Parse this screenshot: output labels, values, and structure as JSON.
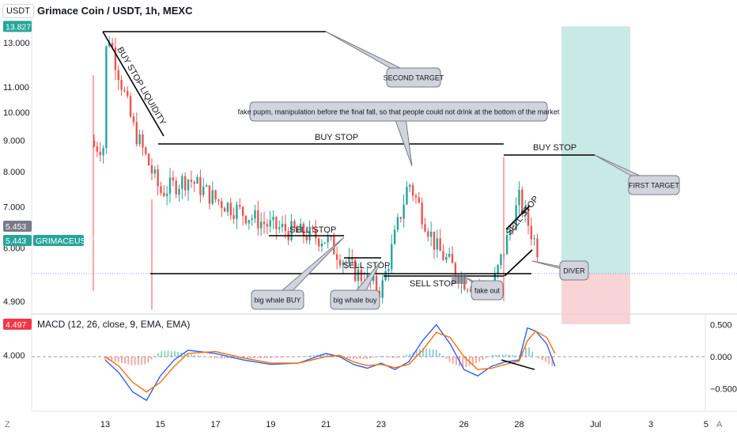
{
  "header": {
    "symbol_button": "USDT",
    "title": "Grimace Coin / USDT, 1h, MEXC"
  },
  "macd": {
    "label": "MACD (12, 26, close, 9, EMA, EMA)"
  },
  "corners": {
    "left": "Z",
    "right": "A"
  },
  "colors": {
    "up": "#26a69a",
    "down": "#ef5350",
    "price_badge": "#26a69a",
    "stop_badge": "#f23645",
    "target_badge": "#26a69a",
    "profit_zone": "#b2dfdb",
    "loss_zone": "#f8c9cd",
    "macd_line": "#2962ff",
    "signal_line": "#ff6d00",
    "callout_fill": "#d1d4dc"
  },
  "chart_data": [
    {
      "type": "candlestick",
      "title": "Grimace Coin / USDT, 1h, MEXC",
      "scale": "log",
      "ylim": [
        3.9,
        14.2
      ],
      "y_ticks": [
        13.0,
        11.0,
        10.0,
        9.0,
        8.0,
        7.0,
        6.0,
        4.9,
        4.0
      ],
      "y_tick_labels": [
        "13.000",
        "11.000",
        "10.000",
        "9.000",
        "8.000",
        "7.000",
        "6.000",
        "4.900",
        "4.000"
      ],
      "x_ticks": [
        "13",
        "15",
        "17",
        "19",
        "21",
        "23",
        "26",
        "28",
        "Jul",
        "3",
        "5"
      ],
      "price_path_approx": [
        {
          "x": "13",
          "close": 9.0
        },
        {
          "x": "13",
          "close": 13.8
        },
        {
          "x": "14",
          "close": 9.5
        },
        {
          "x": "15",
          "close": 7.4
        },
        {
          "x": "16",
          "close": 7.8
        },
        {
          "x": "17",
          "close": 7.2
        },
        {
          "x": "19",
          "close": 6.5
        },
        {
          "x": "21",
          "close": 6.2
        },
        {
          "x": "22",
          "close": 5.5
        },
        {
          "x": "23",
          "close": 5.1
        },
        {
          "x": "24",
          "close": 7.7
        },
        {
          "x": "25",
          "close": 6.0
        },
        {
          "x": "26",
          "close": 5.3
        },
        {
          "x": "27",
          "close": 5.1
        },
        {
          "x": "28",
          "close": 7.2
        },
        {
          "x": "29",
          "close": 5.44
        }
      ],
      "price_badges": [
        {
          "label": "13.827",
          "value": 13.827,
          "role": "target"
        },
        {
          "label": "5.453",
          "value": 5.453,
          "role": "last"
        },
        {
          "label": "5.443",
          "value": 5.443,
          "role": "current"
        },
        {
          "label": "GRIMACEUSDT",
          "value": 5.443,
          "role": "symbol"
        },
        {
          "label": "4.497",
          "value": 4.497,
          "role": "stop"
        }
      ],
      "position_tool": {
        "entry": 5.443,
        "target": 13.827,
        "stop": 4.497
      },
      "annotations": [
        {
          "text": "BUY STOP LIQUIDITY",
          "kind": "line-label"
        },
        {
          "text": "SECOND TARGET",
          "kind": "callout"
        },
        {
          "text": "fake pupm, manipulation before the final fall, so that people could not drink at the bottom of the market",
          "kind": "callout"
        },
        {
          "text": "BUY STOP",
          "kind": "line-label",
          "level": 8.4
        },
        {
          "text": "BUY STOP",
          "kind": "line-label",
          "level": 8.0
        },
        {
          "text": "FIRST TARGET",
          "kind": "callout"
        },
        {
          "text": "SELL STOP",
          "kind": "line-label",
          "level": 5.55
        },
        {
          "text": "SELL STOP",
          "kind": "line-label",
          "level": 5.0
        },
        {
          "text": "SELL STOP",
          "kind": "line-label",
          "level": 4.72
        },
        {
          "text": "SELL STOP",
          "kind": "line-label"
        },
        {
          "text": "big whale BUY",
          "kind": "callout"
        },
        {
          "text": "big whale buy",
          "kind": "callout"
        },
        {
          "text": "fake out",
          "kind": "callout"
        },
        {
          "text": "DIVER",
          "kind": "callout"
        }
      ]
    },
    {
      "type": "macd",
      "title": "MACD (12, 26, close, 9, EMA, EMA)",
      "ylim": [
        -0.62,
        0.62
      ],
      "y_ticks": [
        0.5,
        0.0,
        -0.5
      ],
      "y_tick_labels": [
        "0.500",
        "0.000",
        "−0.500"
      ],
      "x": [
        13,
        13.5,
        14,
        14.5,
        15,
        15.5,
        16,
        17,
        18,
        19,
        20,
        21,
        21.5,
        22,
        22.5,
        23,
        23.5,
        24,
        24.5,
        25,
        25.5,
        26,
        26.5,
        27,
        27.5,
        28,
        28.3,
        28.6,
        29,
        29.3
      ],
      "series": [
        {
          "name": "MACD",
          "values": [
            -0.05,
            -0.25,
            -0.55,
            -0.68,
            -0.3,
            -0.05,
            0.1,
            0.05,
            -0.05,
            -0.12,
            -0.1,
            0.05,
            0.0,
            -0.12,
            -0.18,
            -0.1,
            -0.2,
            -0.08,
            0.25,
            0.5,
            0.2,
            -0.2,
            -0.3,
            -0.15,
            -0.08,
            -0.05,
            0.45,
            0.4,
            0.2,
            -0.15
          ]
        },
        {
          "name": "Signal",
          "values": [
            0.0,
            -0.15,
            -0.4,
            -0.55,
            -0.4,
            -0.15,
            0.05,
            0.08,
            -0.02,
            -0.1,
            -0.1,
            0.0,
            0.02,
            -0.08,
            -0.14,
            -0.12,
            -0.17,
            -0.12,
            0.1,
            0.38,
            0.3,
            0.0,
            -0.2,
            -0.18,
            -0.12,
            -0.07,
            0.25,
            0.4,
            0.3,
            0.05
          ]
        }
      ]
    }
  ]
}
